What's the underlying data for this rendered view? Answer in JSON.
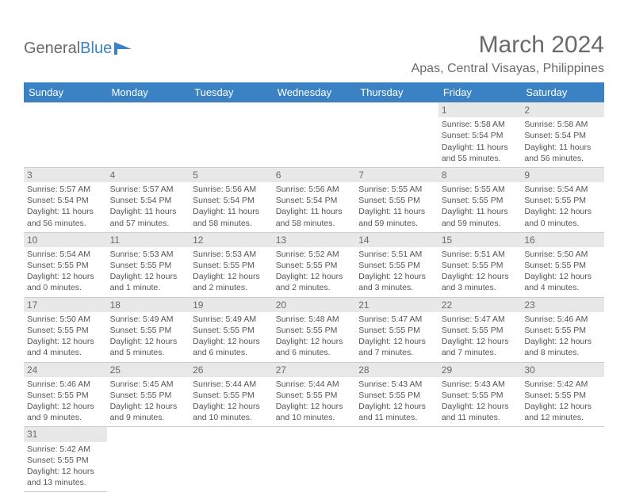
{
  "logo": {
    "text1": "General",
    "text2": "Blue"
  },
  "title": "March 2024",
  "location": "Apas, Central Visayas, Philippines",
  "day_headers": [
    "Sunday",
    "Monday",
    "Tuesday",
    "Wednesday",
    "Thursday",
    "Friday",
    "Saturday"
  ],
  "colors": {
    "header_bg": "#3b82c4",
    "header_text": "#ffffff",
    "text": "#555555",
    "daynum_bg": "#e8e8e8",
    "border": "#cccccc",
    "logo_gray": "#6a6a6a",
    "logo_blue": "#3b82c4"
  },
  "weeks": [
    [
      null,
      null,
      null,
      null,
      null,
      {
        "n": "1",
        "sr": "Sunrise: 5:58 AM",
        "ss": "Sunset: 5:54 PM",
        "dl": "Daylight: 11 hours and 55 minutes."
      },
      {
        "n": "2",
        "sr": "Sunrise: 5:58 AM",
        "ss": "Sunset: 5:54 PM",
        "dl": "Daylight: 11 hours and 56 minutes."
      }
    ],
    [
      {
        "n": "3",
        "sr": "Sunrise: 5:57 AM",
        "ss": "Sunset: 5:54 PM",
        "dl": "Daylight: 11 hours and 56 minutes."
      },
      {
        "n": "4",
        "sr": "Sunrise: 5:57 AM",
        "ss": "Sunset: 5:54 PM",
        "dl": "Daylight: 11 hours and 57 minutes."
      },
      {
        "n": "5",
        "sr": "Sunrise: 5:56 AM",
        "ss": "Sunset: 5:54 PM",
        "dl": "Daylight: 11 hours and 58 minutes."
      },
      {
        "n": "6",
        "sr": "Sunrise: 5:56 AM",
        "ss": "Sunset: 5:54 PM",
        "dl": "Daylight: 11 hours and 58 minutes."
      },
      {
        "n": "7",
        "sr": "Sunrise: 5:55 AM",
        "ss": "Sunset: 5:55 PM",
        "dl": "Daylight: 11 hours and 59 minutes."
      },
      {
        "n": "8",
        "sr": "Sunrise: 5:55 AM",
        "ss": "Sunset: 5:55 PM",
        "dl": "Daylight: 11 hours and 59 minutes."
      },
      {
        "n": "9",
        "sr": "Sunrise: 5:54 AM",
        "ss": "Sunset: 5:55 PM",
        "dl": "Daylight: 12 hours and 0 minutes."
      }
    ],
    [
      {
        "n": "10",
        "sr": "Sunrise: 5:54 AM",
        "ss": "Sunset: 5:55 PM",
        "dl": "Daylight: 12 hours and 0 minutes."
      },
      {
        "n": "11",
        "sr": "Sunrise: 5:53 AM",
        "ss": "Sunset: 5:55 PM",
        "dl": "Daylight: 12 hours and 1 minute."
      },
      {
        "n": "12",
        "sr": "Sunrise: 5:53 AM",
        "ss": "Sunset: 5:55 PM",
        "dl": "Daylight: 12 hours and 2 minutes."
      },
      {
        "n": "13",
        "sr": "Sunrise: 5:52 AM",
        "ss": "Sunset: 5:55 PM",
        "dl": "Daylight: 12 hours and 2 minutes."
      },
      {
        "n": "14",
        "sr": "Sunrise: 5:51 AM",
        "ss": "Sunset: 5:55 PM",
        "dl": "Daylight: 12 hours and 3 minutes."
      },
      {
        "n": "15",
        "sr": "Sunrise: 5:51 AM",
        "ss": "Sunset: 5:55 PM",
        "dl": "Daylight: 12 hours and 3 minutes."
      },
      {
        "n": "16",
        "sr": "Sunrise: 5:50 AM",
        "ss": "Sunset: 5:55 PM",
        "dl": "Daylight: 12 hours and 4 minutes."
      }
    ],
    [
      {
        "n": "17",
        "sr": "Sunrise: 5:50 AM",
        "ss": "Sunset: 5:55 PM",
        "dl": "Daylight: 12 hours and 4 minutes."
      },
      {
        "n": "18",
        "sr": "Sunrise: 5:49 AM",
        "ss": "Sunset: 5:55 PM",
        "dl": "Daylight: 12 hours and 5 minutes."
      },
      {
        "n": "19",
        "sr": "Sunrise: 5:49 AM",
        "ss": "Sunset: 5:55 PM",
        "dl": "Daylight: 12 hours and 6 minutes."
      },
      {
        "n": "20",
        "sr": "Sunrise: 5:48 AM",
        "ss": "Sunset: 5:55 PM",
        "dl": "Daylight: 12 hours and 6 minutes."
      },
      {
        "n": "21",
        "sr": "Sunrise: 5:47 AM",
        "ss": "Sunset: 5:55 PM",
        "dl": "Daylight: 12 hours and 7 minutes."
      },
      {
        "n": "22",
        "sr": "Sunrise: 5:47 AM",
        "ss": "Sunset: 5:55 PM",
        "dl": "Daylight: 12 hours and 7 minutes."
      },
      {
        "n": "23",
        "sr": "Sunrise: 5:46 AM",
        "ss": "Sunset: 5:55 PM",
        "dl": "Daylight: 12 hours and 8 minutes."
      }
    ],
    [
      {
        "n": "24",
        "sr": "Sunrise: 5:46 AM",
        "ss": "Sunset: 5:55 PM",
        "dl": "Daylight: 12 hours and 9 minutes."
      },
      {
        "n": "25",
        "sr": "Sunrise: 5:45 AM",
        "ss": "Sunset: 5:55 PM",
        "dl": "Daylight: 12 hours and 9 minutes."
      },
      {
        "n": "26",
        "sr": "Sunrise: 5:44 AM",
        "ss": "Sunset: 5:55 PM",
        "dl": "Daylight: 12 hours and 10 minutes."
      },
      {
        "n": "27",
        "sr": "Sunrise: 5:44 AM",
        "ss": "Sunset: 5:55 PM",
        "dl": "Daylight: 12 hours and 10 minutes."
      },
      {
        "n": "28",
        "sr": "Sunrise: 5:43 AM",
        "ss": "Sunset: 5:55 PM",
        "dl": "Daylight: 12 hours and 11 minutes."
      },
      {
        "n": "29",
        "sr": "Sunrise: 5:43 AM",
        "ss": "Sunset: 5:55 PM",
        "dl": "Daylight: 12 hours and 11 minutes."
      },
      {
        "n": "30",
        "sr": "Sunrise: 5:42 AM",
        "ss": "Sunset: 5:55 PM",
        "dl": "Daylight: 12 hours and 12 minutes."
      }
    ],
    [
      {
        "n": "31",
        "sr": "Sunrise: 5:42 AM",
        "ss": "Sunset: 5:55 PM",
        "dl": "Daylight: 12 hours and 13 minutes."
      },
      null,
      null,
      null,
      null,
      null,
      null
    ]
  ]
}
